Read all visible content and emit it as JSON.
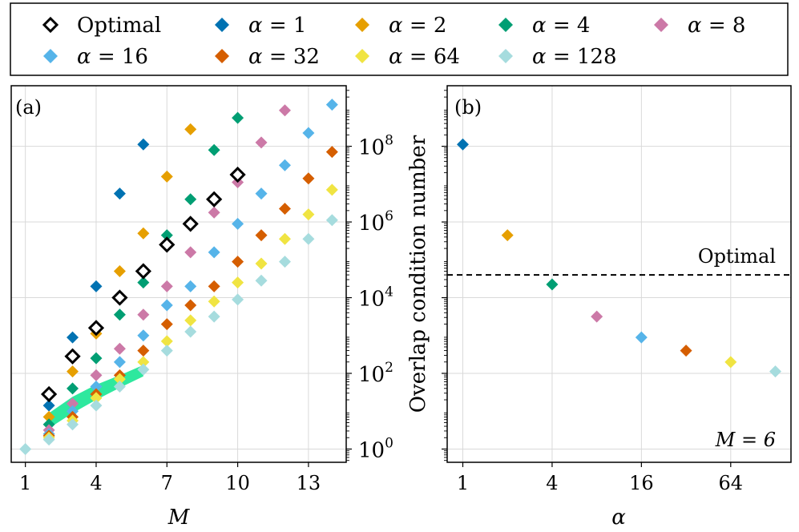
{
  "chart_data": [
    {
      "panel": "a",
      "type": "scatter",
      "panel_label": "(a)",
      "xlabel": "M",
      "ylabel": "Overlap condition number",
      "yscale": "log10",
      "xlim": [
        0.4,
        14.6
      ],
      "ylim_exp": [
        -0.35,
        9.6
      ],
      "x_ticks": [
        1,
        4,
        7,
        10,
        13
      ],
      "y_ticks": [
        {
          "exp": 0,
          "base": "10",
          "sup": "0"
        },
        {
          "exp": 2,
          "base": "10",
          "sup": "2"
        },
        {
          "exp": 4,
          "base": "10",
          "sup": "4"
        },
        {
          "exp": 6,
          "base": "10",
          "sup": "6"
        },
        {
          "exp": 8,
          "base": "10",
          "sup": "8"
        }
      ],
      "band": {
        "color": "#2ee89e",
        "lower": [
          [
            2,
            0.55
          ],
          [
            3,
            0.95
          ],
          [
            4,
            1.3
          ],
          [
            5,
            1.62
          ],
          [
            6,
            1.92
          ]
        ],
        "upper": [
          [
            2,
            0.95
          ],
          [
            3,
            1.38
          ],
          [
            4,
            1.7
          ],
          [
            5,
            1.95
          ],
          [
            6,
            2.22
          ]
        ]
      },
      "series": [
        {
          "name": "Optimal",
          "marker": "open",
          "color": "#000000",
          "x": [
            2,
            3,
            4,
            5,
            6,
            7,
            8,
            9,
            10
          ],
          "y_exp": [
            1.45,
            2.45,
            3.2,
            4.0,
            4.7,
            5.4,
            5.95,
            6.6,
            7.25
          ]
        },
        {
          "name": "α = 1",
          "color": "#0072b2",
          "x": [
            2,
            3,
            4,
            5,
            6
          ],
          "y_exp": [
            1.15,
            2.95,
            4.3,
            6.75,
            8.05
          ]
        },
        {
          "name": "α = 2",
          "color": "#e69f00",
          "x": [
            2,
            3,
            4,
            5,
            6,
            7,
            8
          ],
          "y_exp": [
            0.85,
            2.05,
            3.05,
            4.7,
            5.7,
            7.2,
            8.45
          ]
        },
        {
          "name": "α = 4",
          "color": "#009e73",
          "x": [
            2,
            3,
            4,
            5,
            6,
            7,
            8,
            9,
            10
          ],
          "y_exp": [
            0.65,
            1.6,
            2.4,
            3.55,
            4.4,
            5.65,
            6.6,
            7.9,
            8.75
          ]
        },
        {
          "name": "α = 8",
          "color": "#cc79a7",
          "x": [
            2,
            3,
            4,
            5,
            6,
            7,
            8,
            9,
            10,
            11,
            12
          ],
          "y_exp": [
            0.5,
            1.2,
            1.95,
            2.65,
            3.55,
            4.3,
            5.2,
            6.25,
            7.05,
            8.1,
            8.95
          ]
        },
        {
          "name": "α = 16",
          "color": "#56b4e9",
          "x": [
            2,
            3,
            4,
            5,
            6,
            7,
            8,
            9,
            10,
            11,
            12,
            13,
            14
          ],
          "y_exp": [
            0.4,
            1.0,
            1.65,
            2.3,
            3.0,
            3.8,
            4.3,
            5.2,
            5.95,
            6.75,
            7.5,
            8.35,
            9.1
          ]
        },
        {
          "name": "α = 32",
          "color": "#d55e00",
          "x": [
            2,
            3,
            4,
            5,
            6,
            7,
            8,
            9,
            10,
            11,
            12,
            13,
            14
          ],
          "y_exp": [
            0.35,
            0.85,
            1.45,
            1.95,
            2.6,
            3.3,
            3.8,
            4.3,
            4.95,
            5.65,
            6.35,
            7.15,
            7.85
          ]
        },
        {
          "name": "α = 64",
          "color": "#f0e442",
          "x": [
            2,
            3,
            4,
            5,
            6,
            7,
            8,
            9,
            10,
            11,
            12,
            13,
            14
          ],
          "y_exp": [
            0.3,
            0.75,
            1.35,
            1.85,
            2.3,
            2.85,
            3.4,
            3.9,
            4.4,
            4.9,
            5.55,
            6.2,
            6.85
          ]
        },
        {
          "name": "α = 128",
          "color": "#a6dcde",
          "x": [
            1,
            2,
            3,
            4,
            5,
            6,
            7,
            8,
            9,
            10,
            11,
            12,
            13,
            14
          ],
          "y_exp": [
            0.0,
            0.25,
            0.65,
            1.15,
            1.65,
            2.1,
            2.6,
            3.1,
            3.5,
            3.95,
            4.45,
            4.95,
            5.55,
            6.05
          ]
        }
      ]
    },
    {
      "panel": "b",
      "type": "scatter",
      "panel_label": "(b)",
      "xlabel": "α",
      "xscale": "log2",
      "yscale": "log10",
      "xlim_log2": [
        -0.35,
        7.35
      ],
      "ylim_exp": [
        -0.35,
        9.6
      ],
      "x_ticks": [
        {
          "log2": 0,
          "label": "1"
        },
        {
          "log2": 2,
          "label": "4"
        },
        {
          "log2": 4,
          "label": "16"
        },
        {
          "log2": 6,
          "label": "64"
        }
      ],
      "y_gridlines_exp": [
        0,
        2,
        4,
        6,
        8
      ],
      "optimal_line": {
        "y_exp": 4.6,
        "label": "Optimal"
      },
      "annotation": "M = 6",
      "points": [
        {
          "alpha": 1,
          "log2": 0,
          "y_exp": 8.05,
          "color": "#0072b2"
        },
        {
          "alpha": 2,
          "log2": 1,
          "y_exp": 5.65,
          "color": "#e69f00"
        },
        {
          "alpha": 4,
          "log2": 2,
          "y_exp": 4.35,
          "color": "#009e73"
        },
        {
          "alpha": 8,
          "log2": 3,
          "y_exp": 3.5,
          "color": "#cc79a7"
        },
        {
          "alpha": 16,
          "log2": 4,
          "y_exp": 2.95,
          "color": "#56b4e9"
        },
        {
          "alpha": 32,
          "log2": 5,
          "y_exp": 2.6,
          "color": "#d55e00"
        },
        {
          "alpha": 64,
          "log2": 6,
          "y_exp": 2.3,
          "color": "#f0e442"
        },
        {
          "alpha": 128,
          "log2": 7,
          "y_exp": 2.05,
          "color": "#a6dcde"
        }
      ]
    }
  ],
  "legend": {
    "entries": [
      {
        "label": "Optimal",
        "style": "open",
        "color": "#000000"
      },
      {
        "greek": "α",
        "eq": " = ",
        "num": "1",
        "color": "#0072b2"
      },
      {
        "greek": "α",
        "eq": " = ",
        "num": "2",
        "color": "#e69f00"
      },
      {
        "greek": "α",
        "eq": " = ",
        "num": "4",
        "color": "#009e73"
      },
      {
        "greek": "α",
        "eq": " = ",
        "num": "8",
        "color": "#cc79a7"
      },
      {
        "greek": "α",
        "eq": " = ",
        "num": "16",
        "color": "#56b4e9"
      },
      {
        "greek": "α",
        "eq": " = ",
        "num": "32",
        "color": "#d55e00"
      },
      {
        "greek": "α",
        "eq": " = ",
        "num": "64",
        "color": "#f0e442"
      },
      {
        "greek": "α",
        "eq": " = ",
        "num": "128",
        "color": "#a6dcde"
      }
    ]
  }
}
